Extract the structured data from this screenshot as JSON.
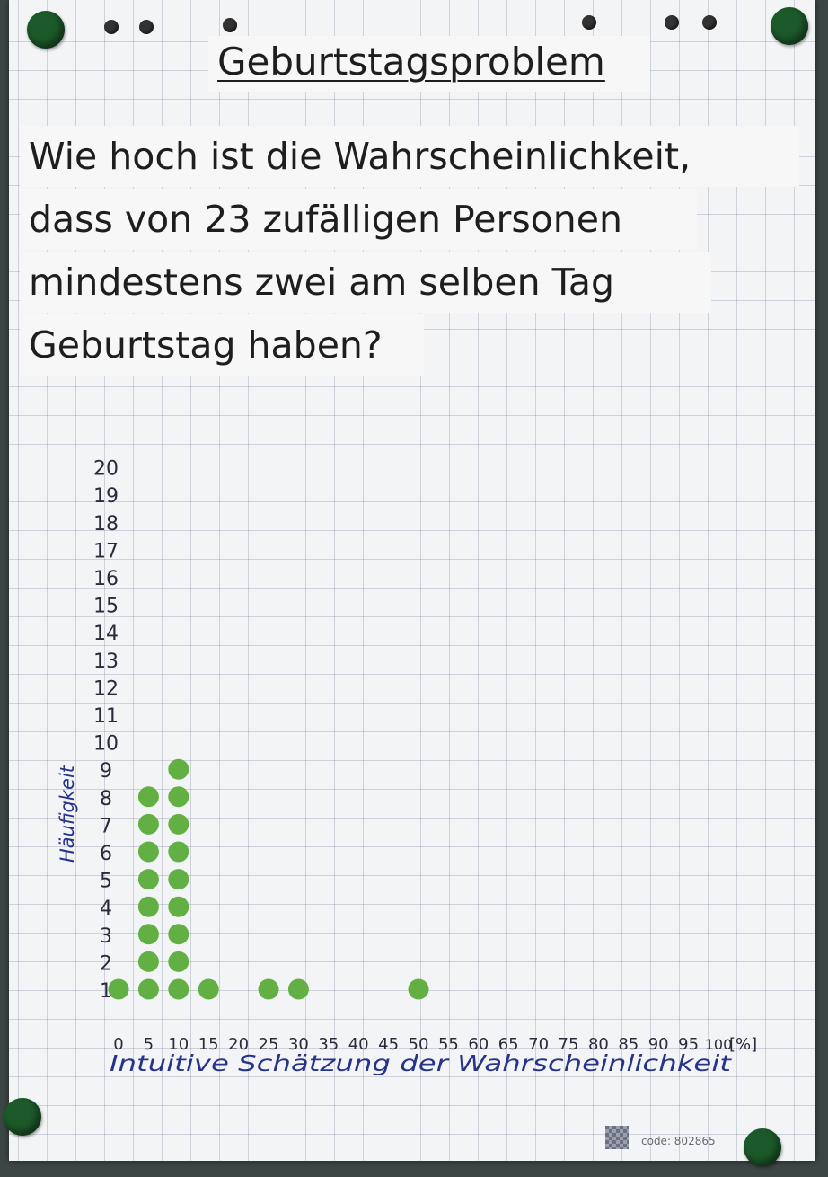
{
  "poster": {
    "title": "Geburtstagsproblem",
    "question_lines": [
      "Wie hoch ist die Wahrscheinlichkeit,",
      "dass von 23 zufälligen Personen",
      "mindestens zwei am selben Tag",
      "Geburtstag haben?"
    ],
    "code": "code: 802865"
  },
  "colors": {
    "dot": "#62b043",
    "axis_text": "#2a2a3a",
    "handwriting_blue": "#27338a",
    "magnet": "#1d5a2a"
  },
  "chart_data": {
    "type": "scatter",
    "subtype": "dot plot",
    "title": "",
    "xlabel": "Intuitive Schätzung der Wahrscheinlichkeit",
    "ylabel": "Häufigkeit",
    "x_unit": "[%]",
    "x_ticks": [
      0,
      5,
      10,
      15,
      20,
      25,
      30,
      35,
      40,
      45,
      50,
      55,
      60,
      65,
      70,
      75,
      80,
      85,
      90,
      95,
      100
    ],
    "y_ticks": [
      1,
      2,
      3,
      4,
      5,
      6,
      7,
      8,
      9,
      10,
      11,
      12,
      13,
      14,
      15,
      16,
      17,
      18,
      19,
      20
    ],
    "xlim": [
      0,
      100
    ],
    "ylim": [
      1,
      20
    ],
    "grid": true,
    "categories": [
      0,
      5,
      10,
      15,
      25,
      30,
      50
    ],
    "values": [
      1,
      8,
      9,
      1,
      1,
      1,
      1
    ]
  }
}
